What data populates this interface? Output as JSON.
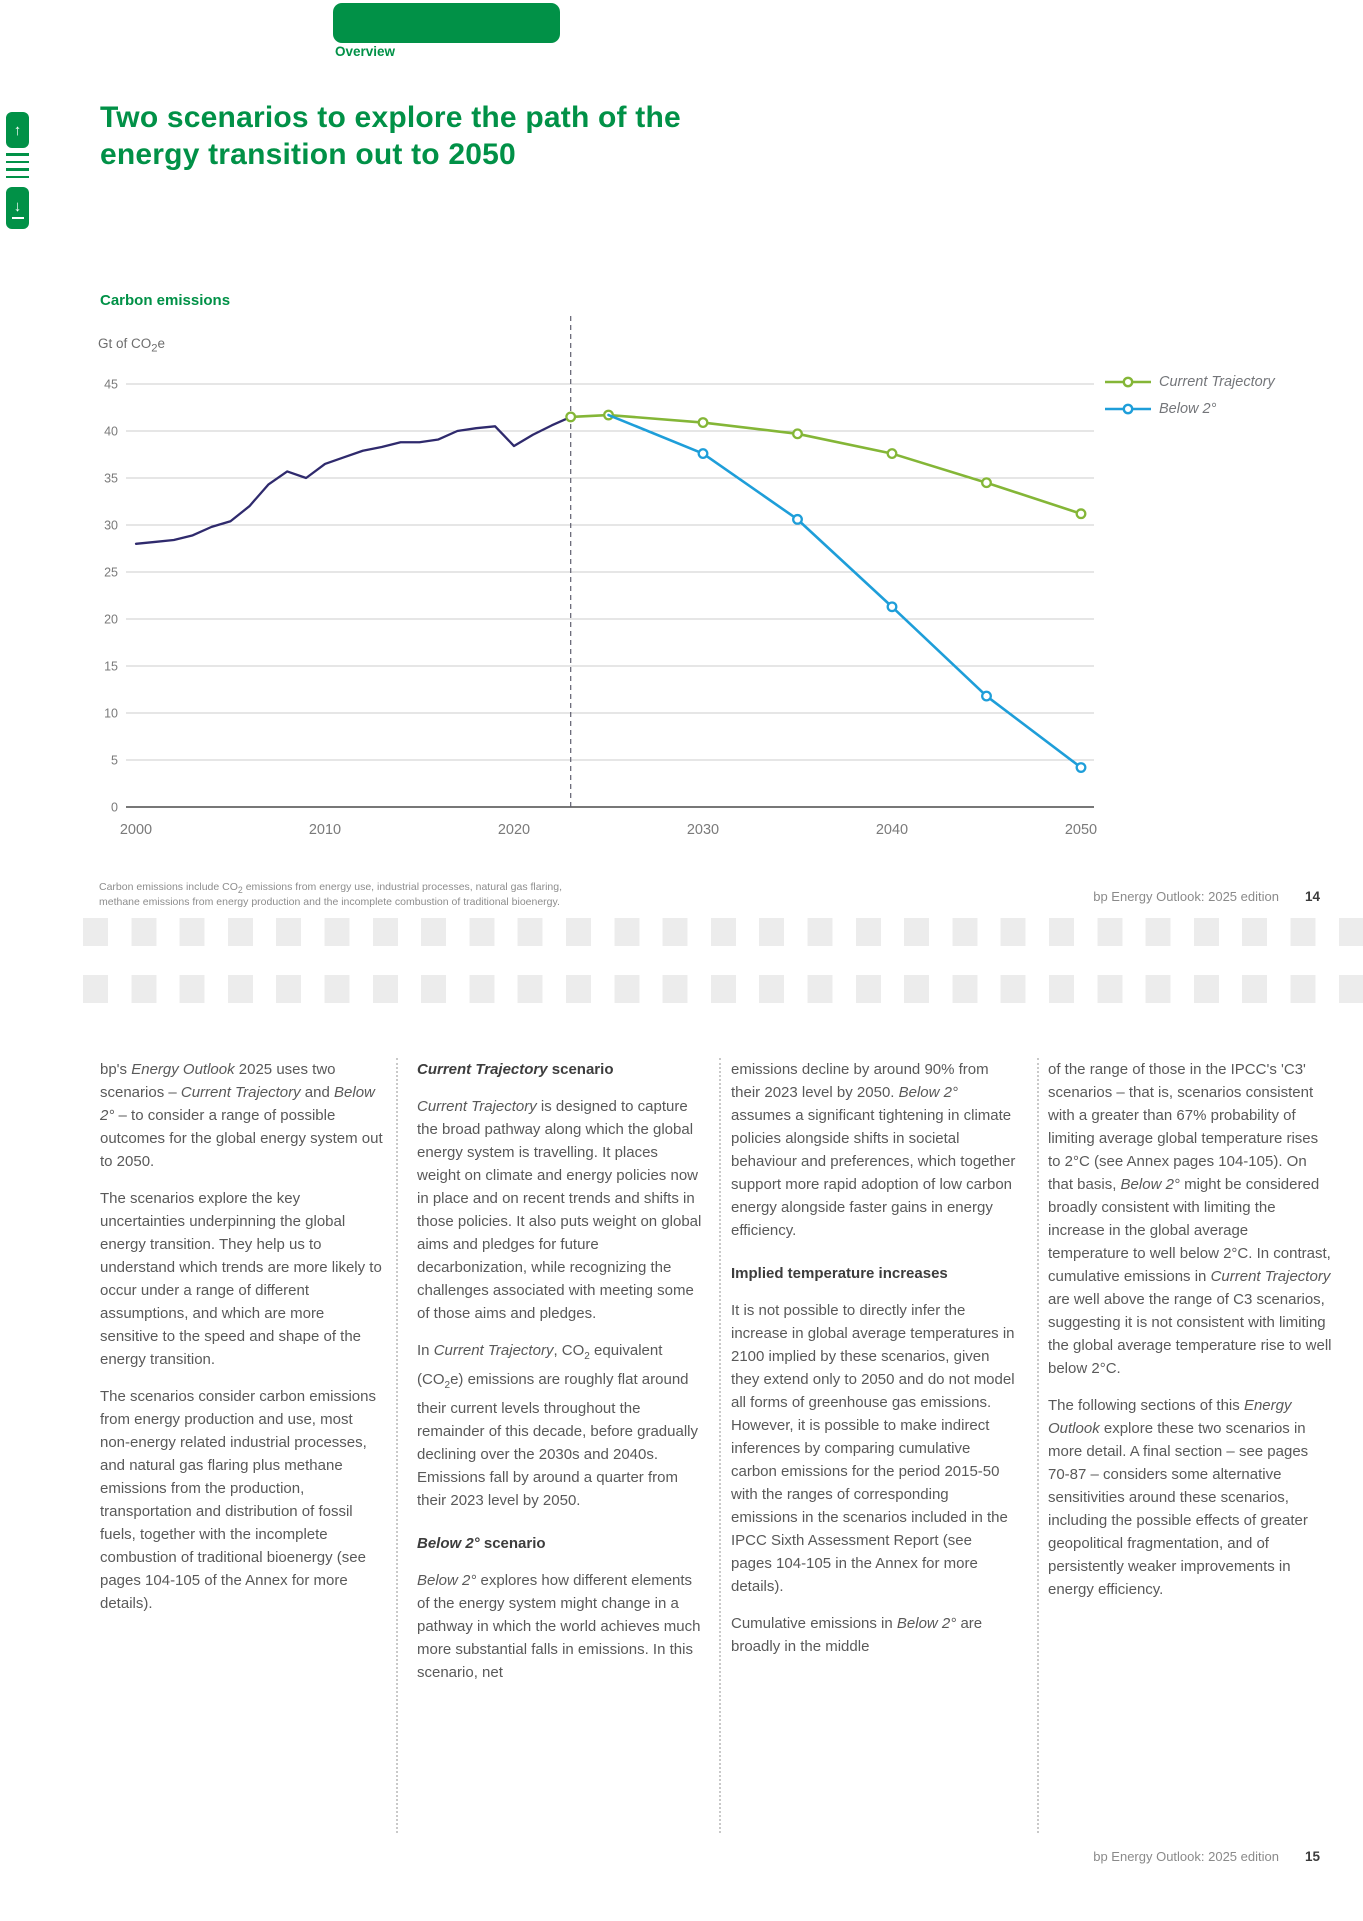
{
  "header": {
    "tab_label": "Overview",
    "title_line1": "Two scenarios to explore the path of the",
    "title_line2": "energy transition out to 2050"
  },
  "chart_data": {
    "type": "line",
    "title": "Carbon emissions",
    "unit_label": "Gt of CO<sub>2</sub>e",
    "ylim": [
      0,
      45
    ],
    "ytick_step": 5,
    "xticks": [
      2000,
      2010,
      2020,
      2030,
      2040,
      2050
    ],
    "divider_year": 2023,
    "grid": "horizontal",
    "legend_position": "top-right",
    "series": [
      {
        "name": "History",
        "color": "#2f2a6d",
        "markers": false,
        "points": [
          [
            2000,
            28.0
          ],
          [
            2001,
            28.2
          ],
          [
            2002,
            28.4
          ],
          [
            2003,
            28.9
          ],
          [
            2004,
            29.8
          ],
          [
            2005,
            30.4
          ],
          [
            2006,
            32.0
          ],
          [
            2007,
            34.3
          ],
          [
            2008,
            35.7
          ],
          [
            2009,
            35.0
          ],
          [
            2010,
            36.5
          ],
          [
            2011,
            37.2
          ],
          [
            2012,
            37.9
          ],
          [
            2013,
            38.3
          ],
          [
            2014,
            38.8
          ],
          [
            2015,
            38.8
          ],
          [
            2016,
            39.1
          ],
          [
            2017,
            40.0
          ],
          [
            2018,
            40.3
          ],
          [
            2019,
            40.5
          ],
          [
            2020,
            38.4
          ],
          [
            2021,
            39.6
          ],
          [
            2022,
            40.6
          ],
          [
            2023,
            41.5
          ]
        ]
      },
      {
        "name": "Current Trajectory",
        "color": "#84b637",
        "markers": true,
        "marker_skip_first": false,
        "points": [
          [
            2023,
            41.5
          ],
          [
            2025,
            41.7
          ],
          [
            2030,
            40.9
          ],
          [
            2035,
            39.7
          ],
          [
            2040,
            37.6
          ],
          [
            2045,
            34.5
          ],
          [
            2050,
            31.2
          ]
        ]
      },
      {
        "name": "Below 2°",
        "color": "#1e9ed9",
        "markers": true,
        "marker_skip_first": true,
        "points": [
          [
            2025,
            41.7
          ],
          [
            2030,
            37.6
          ],
          [
            2035,
            30.6
          ],
          [
            2040,
            21.3
          ],
          [
            2045,
            11.8
          ],
          [
            2050,
            4.2
          ]
        ]
      }
    ],
    "legend": [
      {
        "label": "Current Trajectory",
        "color": "#84b637"
      },
      {
        "label": "Below 2°",
        "color": "#1e9ed9"
      }
    ]
  },
  "footnote": {
    "line1": "Carbon emissions include CO<sub>2</sub>  emissions from energy use, industrial processes, natural gas flaring,",
    "line2": "methane emissions from energy production and the incomplete combustion of traditional bioenergy."
  },
  "footer": {
    "text": "bp Energy Outlook: 2025 edition",
    "page_top": "14",
    "page_bottom": "15"
  },
  "body": {
    "columns": [
      [
        {
          "t": "p",
          "html": "bp's <i>Energy Outlook</i> 2025 uses two scenarios – <i>Current Trajectory</i> and <i>Below 2°</i> – to consider a range of possible outcomes for the global energy system out to 2050."
        },
        {
          "t": "p",
          "html": "The scenarios explore the key uncertainties underpinning the global energy transition. They help us to understand which trends are more likely to occur under a range of different assumptions, and which are more sensitive to the speed and shape of the energy transition."
        },
        {
          "t": "p",
          "html": "The scenarios consider carbon emissions from energy production and use, most non-energy related industrial processes, and natural gas flaring plus methane emissions from the production, transportation and distribution of fossil fuels, together with the incomplete combustion of traditional bioenergy (see pages 104-105 of the Annex for more details)."
        }
      ],
      [
        {
          "t": "h",
          "html": "<i>Current Trajectory</i> scenario"
        },
        {
          "t": "p",
          "html": "<i>Current Trajectory</i> is designed to capture the broad pathway along which the global energy system is travelling. It places weight on climate and energy policies now in place and on recent trends and shifts in those policies. It also puts weight on global aims and pledges for future decarbonization, while recognizing the challenges associated with meeting some of those aims and pledges."
        },
        {
          "t": "p",
          "html": "In <i>Current Trajectory</i>, CO<sub>2</sub> equivalent (CO<sub>2</sub>e) emissions are roughly flat around their current levels throughout the remainder of this decade, before gradually declining over the 2030s and 2040s. Emissions fall by around a quarter from their 2023 level by 2050."
        },
        {
          "t": "h",
          "html": "<i>Below 2°</i> scenario"
        },
        {
          "t": "p",
          "html": "<i>Below 2°</i> explores how different elements of the energy system might change in a pathway in which the world achieves much more substantial falls in emissions. In this scenario, net"
        }
      ],
      [
        {
          "t": "p",
          "html": "emissions decline by around 90% from their 2023 level by 2050. <i>Below 2°</i> assumes a significant tightening in climate policies alongside shifts in societal behaviour and preferences, which together support more rapid adoption of low carbon energy alongside faster gains in energy efficiency."
        },
        {
          "t": "h",
          "html": "Implied temperature increases"
        },
        {
          "t": "p",
          "html": "It is not possible to directly infer the increase in global average temperatures in 2100 implied by these scenarios, given they extend only to 2050 and do not model all forms of greenhouse gas emissions. However, it is possible to make indirect inferences by comparing cumulative carbon emissions for the period 2015-50 with the ranges of corresponding emissions in the scenarios included in the IPCC Sixth Assessment Report (see pages 104-105 in the Annex for more details)."
        },
        {
          "t": "p",
          "html": "Cumulative emissions in <i>Below 2°</i> are broadly in the middle"
        }
      ],
      [
        {
          "t": "p",
          "html": "of the range of those in the IPCC's 'C3' scenarios – that is, scenarios consistent with a greater than 67% probability of limiting average global temperature rises to 2°C (see Annex pages 104-105). On that basis, <i>Below 2°</i> might be considered broadly consistent with limiting the increase in the global average temperature to well below 2°C. In contrast, cumulative emissions in <i>Current Trajectory</i> are well above the range of C3 scenarios, suggesting it is not consistent with limiting the global average temperature rise to well below 2°C."
        },
        {
          "t": "p",
          "html": "The following sections of this <i>Energy Outlook</i> explore these two scenarios in more detail. A final section – see pages 70-87 – considers some alternative sensitivities around these scenarios, including the possible effects of greater geopolitical fragmentation, and of persistently weaker improvements in energy efficiency."
        }
      ]
    ]
  }
}
